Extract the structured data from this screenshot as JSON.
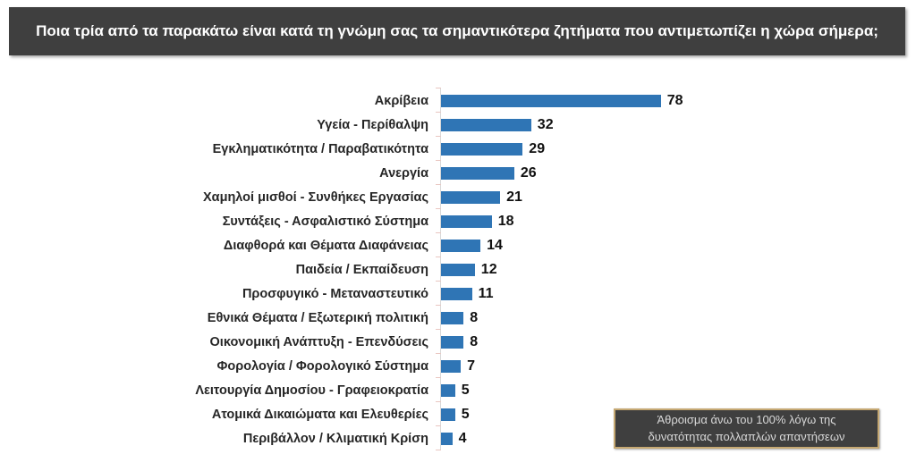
{
  "header": {
    "title": "Ποια τρία από τα παρακάτω είναι κατά τη γνώμη σας τα σημαντικότερα ζητήματα που αντιμετωπίζει η χώρα σήμερα;"
  },
  "chart_data": {
    "type": "bar",
    "orientation": "horizontal",
    "title": "Ποια τρία από τα παρακάτω είναι κατά τη γνώμη σας τα σημαντικότερα ζητήματα που αντιμετωπίζει η χώρα σήμερα;",
    "categories": [
      "Ακρίβεια",
      "Υγεία - Περίθαλψη",
      "Εγκληματικότητα / Παραβατικότητα",
      "Ανεργία",
      "Χαμηλοί μισθοί - Συνθήκες Εργασίας",
      "Συντάξεις - Ασφαλιστικό Σύστημα",
      "Διαφθορά και Θέματα Διαφάνειας",
      "Παιδεία / Εκπαίδευση",
      "Προσφυγικό - Μεταναστευτικό",
      "Εθνικά Θέματα / Εξωτερική πολιτική",
      "Οικονομική Ανάπτυξη - Επενδύσεις",
      "Φορολογία / Φορολογικό Σύστημα",
      "Λειτουργία Δημοσίου - Γραφειοκρατία",
      "Ατομικά Δικαιώματα και Ελευθερίες",
      "Περιβάλλον / Κλιματική Κρίση"
    ],
    "values": [
      78,
      32,
      29,
      26,
      21,
      18,
      14,
      12,
      11,
      8,
      8,
      7,
      5,
      5,
      4
    ],
    "xlabel": "",
    "ylabel": "",
    "xlim": [
      0,
      80
    ],
    "grid": false,
    "legend": false,
    "value_labels_shown": true,
    "units": "%"
  },
  "note": {
    "lines": [
      "Άθροισμα άνω του 100% λόγω της",
      "δυνατότητας πολλαπλών απαντήσεων"
    ]
  },
  "colors": {
    "bar_fill": "#2F75B5",
    "header_background": "#3F3F3F",
    "header_text": "#FFFFFF",
    "axis_line": "#D9D9D9",
    "tick_mark": "#E9C6C1",
    "note_background": "#3F3F3F",
    "note_border": "#C5A872",
    "note_text": "#D8D8D8",
    "value_text": "#111111",
    "category_text": "#262626"
  }
}
